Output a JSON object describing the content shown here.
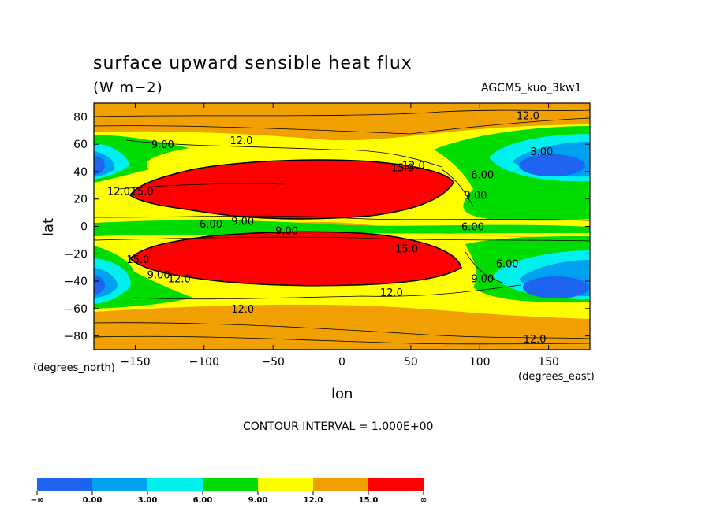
{
  "header": {
    "title": "surface upward sensible heat flux",
    "units": "(W m−2)",
    "model": "AGCM5_kuo_3kw1"
  },
  "footer": {
    "y_note": "(degrees_north)",
    "x_note": "(degrees_east)",
    "contour_interval": "CONTOUR INTERVAL = 1.000E+00"
  },
  "chart_data": {
    "type": "heatmap",
    "xlabel": "lon",
    "ylabel": "lat",
    "xlim": [
      -180,
      180
    ],
    "ylim": [
      -90,
      90
    ],
    "x_ticks": [
      -150,
      -100,
      -50,
      0,
      50,
      100,
      150
    ],
    "y_ticks": [
      80,
      60,
      40,
      20,
      0,
      -20,
      -40,
      -60,
      -80
    ],
    "x_tick_labels": [
      "−150",
      "−100",
      "−50",
      "0",
      "50",
      "100",
      "150"
    ],
    "y_tick_labels": [
      "80",
      "60",
      "40",
      "20",
      "0",
      "−20",
      "−40",
      "−60",
      "−80"
    ],
    "colorbar": {
      "labels": [
        "−∞",
        "0.00",
        "3.00",
        "6.00",
        "9.00",
        "12.0",
        "15.0",
        "∞"
      ],
      "colors": [
        "#1e64f0",
        "#00a0f0",
        "#00f0f0",
        "#00dc00",
        "#ffff00",
        "#f0a000",
        "#ff0000"
      ]
    },
    "contour_labels": [
      {
        "text": "12.0",
        "lon": 135,
        "lat": 81
      },
      {
        "text": "12.0",
        "lon": -73,
        "lat": 63
      },
      {
        "text": "9.00",
        "lon": -130,
        "lat": 60
      },
      {
        "text": "3.00",
        "lon": 145,
        "lat": 55
      },
      {
        "text": "12.0",
        "lon": 52,
        "lat": 45
      },
      {
        "text": "15.0",
        "lon": 44,
        "lat": 43
      },
      {
        "text": "6.00",
        "lon": 102,
        "lat": 38
      },
      {
        "text": "12.0",
        "lon": -162,
        "lat": 26
      },
      {
        "text": "15.0",
        "lon": -145,
        "lat": 26
      },
      {
        "text": "9.00",
        "lon": 97,
        "lat": 23
      },
      {
        "text": "6.00",
        "lon": -95,
        "lat": 2
      },
      {
        "text": "9.00",
        "lon": -72,
        "lat": 4
      },
      {
        "text": "6.00",
        "lon": 95,
        "lat": 0
      },
      {
        "text": "9.00",
        "lon": -40,
        "lat": -3
      },
      {
        "text": "15.0",
        "lon": 47,
        "lat": -16
      },
      {
        "text": "15.0",
        "lon": -148,
        "lat": -24
      },
      {
        "text": "6.00",
        "lon": 120,
        "lat": -27
      },
      {
        "text": "9.00",
        "lon": -133,
        "lat": -35
      },
      {
        "text": "12.0",
        "lon": -118,
        "lat": -38
      },
      {
        "text": "9.00",
        "lon": 102,
        "lat": -38
      },
      {
        "text": "12.0",
        "lon": 36,
        "lat": -48
      },
      {
        "text": "12.0",
        "lon": -72,
        "lat": -60
      },
      {
        "text": "12.0",
        "lon": 140,
        "lat": -82
      }
    ]
  }
}
